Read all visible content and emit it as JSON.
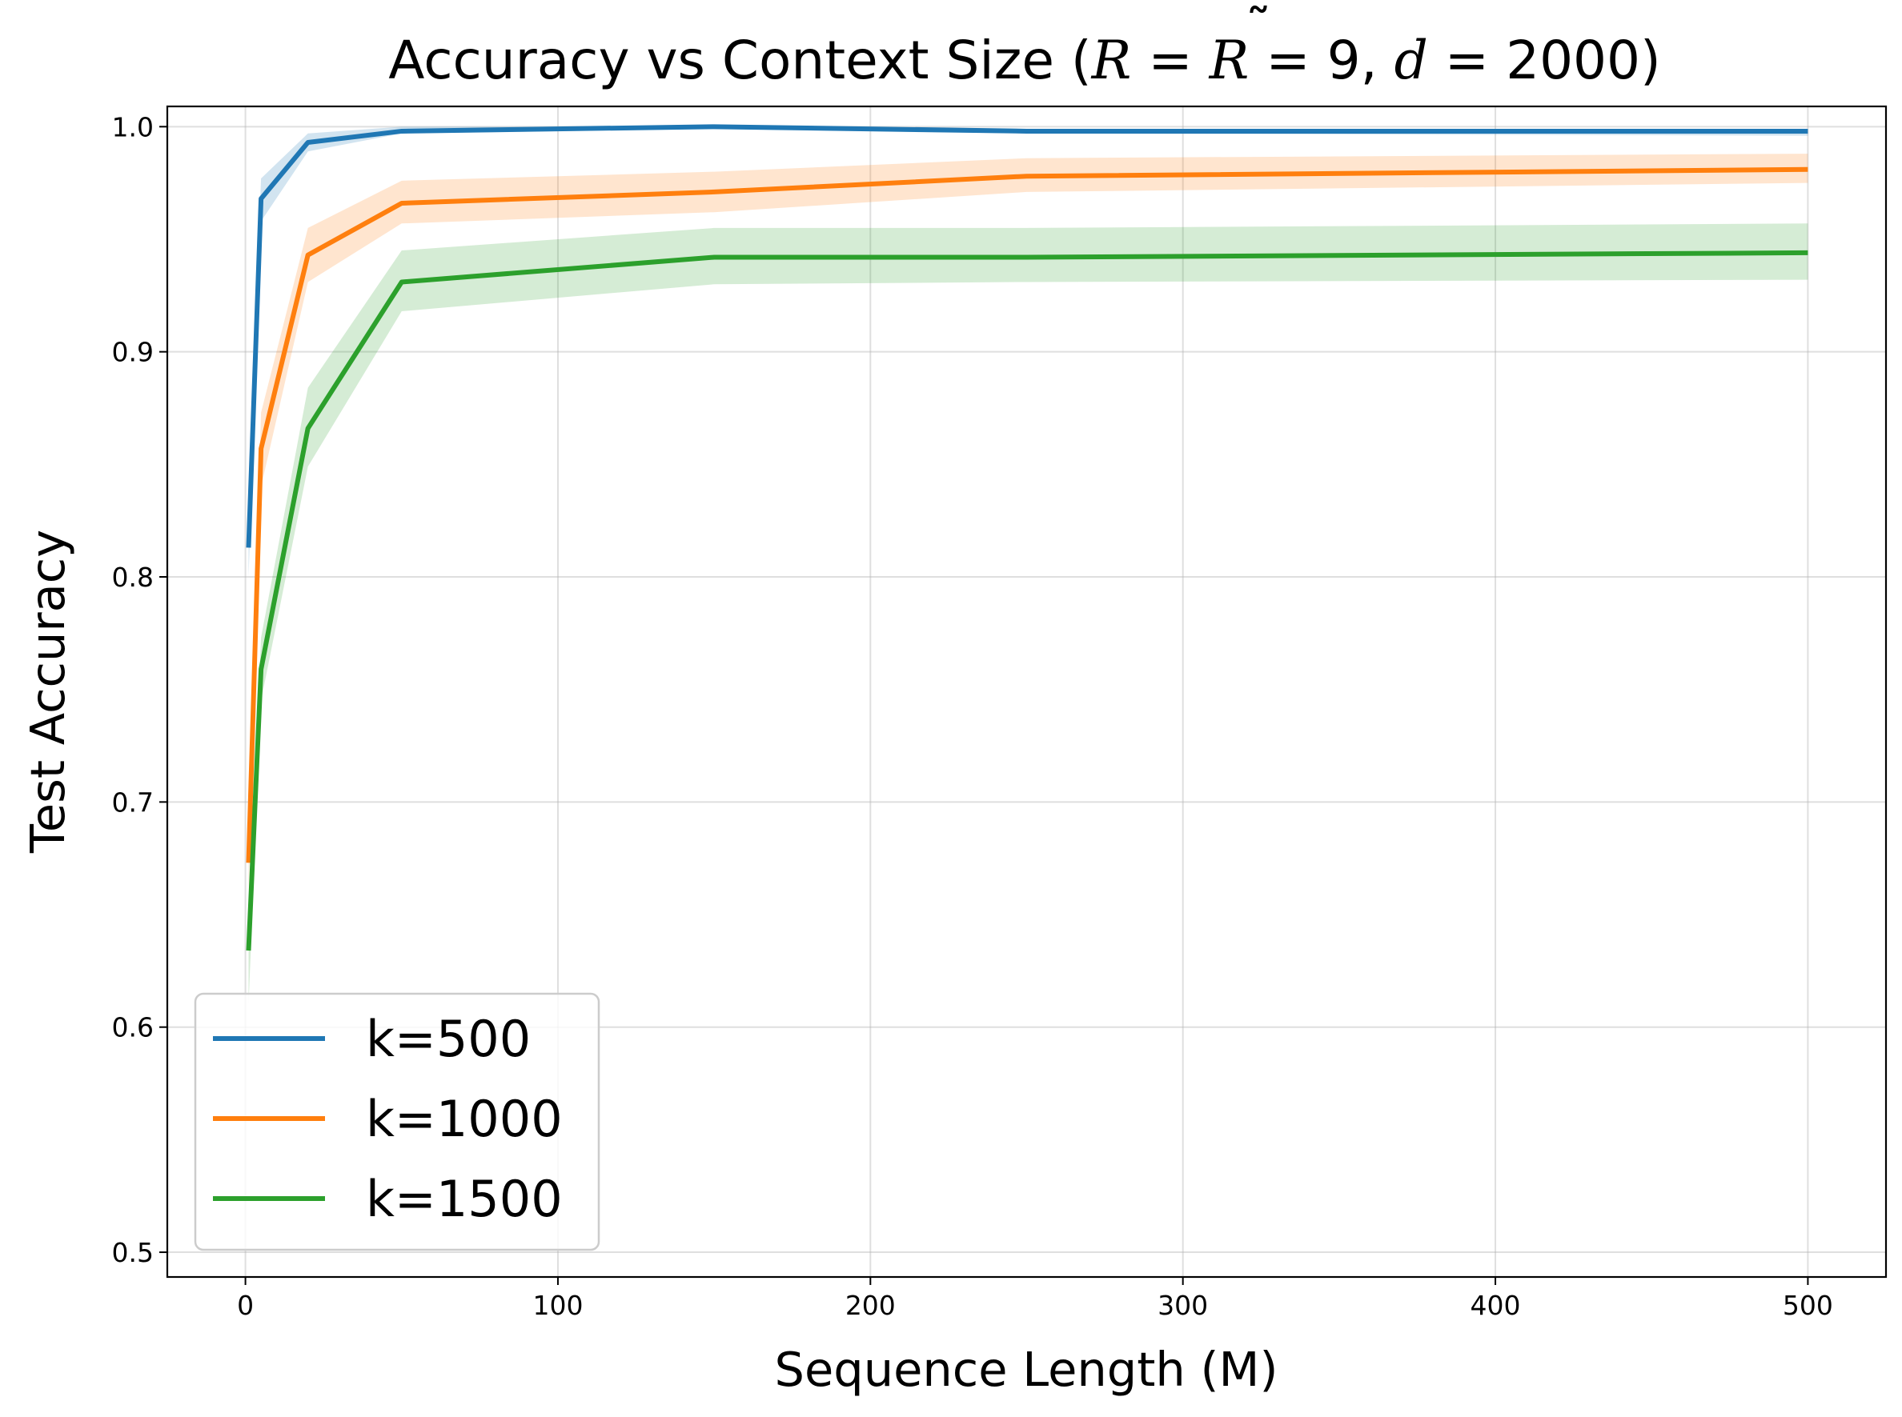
{
  "chart_data": {
    "type": "line",
    "title": {
      "prefix": "Accuracy vs Context Size (",
      "r": "R",
      "eq1": " = ",
      "rt": "R",
      "tilde": "˜",
      "eq2": " = 9, ",
      "d": "d",
      "eq3": " = 2000)"
    },
    "xlabel": "Sequence Length (M)",
    "ylabel": "Test Accuracy",
    "xlim": [
      -25,
      525
    ],
    "ylim": [
      0.489,
      1.009
    ],
    "xticks": [
      0,
      100,
      200,
      300,
      400,
      500
    ],
    "xtick_labels": [
      "0",
      "100",
      "200",
      "300",
      "400",
      "500"
    ],
    "yticks": [
      0.5,
      0.6,
      0.7,
      0.8,
      0.9,
      1.0
    ],
    "ytick_labels": [
      "0.5",
      "0.6",
      "0.7",
      "0.8",
      "0.9",
      "1.0"
    ],
    "grid": true,
    "legend_position": "lower-left",
    "x": [
      1,
      5,
      20,
      50,
      150,
      250,
      500
    ],
    "series": [
      {
        "name": "k=500",
        "color": "#1f77b4",
        "band_color": "#1f77b4",
        "values": [
          0.813,
          0.968,
          0.993,
          0.998,
          1.0,
          0.998,
          0.998
        ],
        "lower": [
          0.8,
          0.958,
          0.989,
          0.997,
          0.999,
          0.997,
          0.996
        ],
        "upper": [
          0.835,
          0.977,
          0.997,
          1.0,
          1.0,
          0.999,
          0.999
        ]
      },
      {
        "name": "k=1000",
        "color": "#ff7f0e",
        "band_color": "#ff7f0e",
        "values": [
          0.673,
          0.857,
          0.943,
          0.966,
          0.971,
          0.978,
          0.981
        ],
        "lower": [
          0.66,
          0.84,
          0.931,
          0.957,
          0.962,
          0.971,
          0.975
        ],
        "upper": [
          0.69,
          0.873,
          0.955,
          0.976,
          0.98,
          0.986,
          0.988
        ]
      },
      {
        "name": "k=1500",
        "color": "#2ca02c",
        "band_color": "#2ca02c",
        "values": [
          0.634,
          0.759,
          0.866,
          0.931,
          0.942,
          0.942,
          0.944
        ],
        "lower": [
          0.61,
          0.745,
          0.849,
          0.918,
          0.93,
          0.931,
          0.932
        ],
        "upper": [
          0.655,
          0.773,
          0.884,
          0.945,
          0.955,
          0.955,
          0.957
        ]
      }
    ]
  }
}
